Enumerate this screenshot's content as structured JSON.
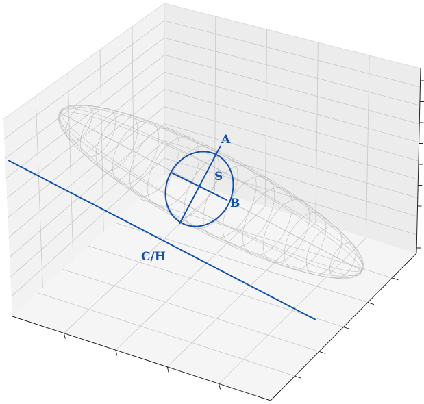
{
  "labels": {
    "a": "A",
    "b": "B",
    "s": "S",
    "ch": "C/H"
  },
  "colors": {
    "accent": "#1550a8",
    "pane_left": "#f2f2f2",
    "pane_right": "#ececec",
    "pane_floor": "#f5f5f5",
    "grid": "#c8c8c8",
    "mesh": "#b4b4b4",
    "axis_line": "#222222"
  }
}
